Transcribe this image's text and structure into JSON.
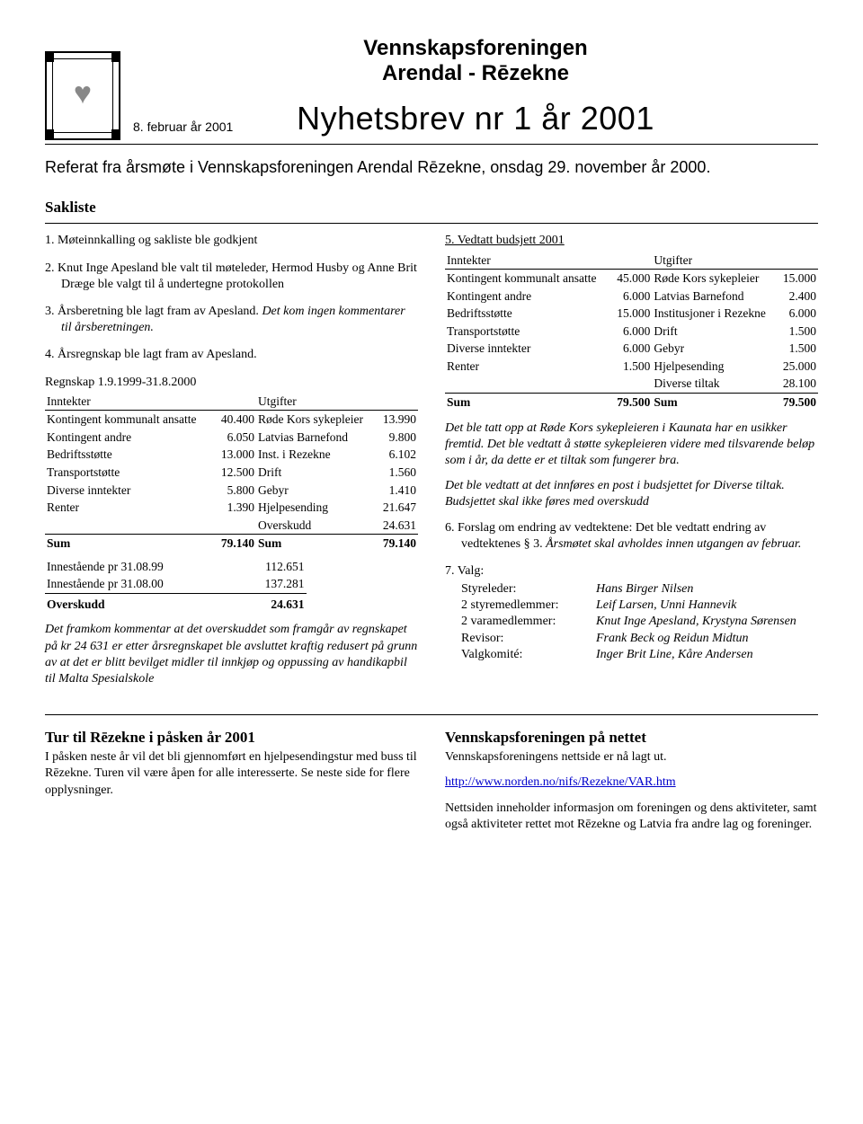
{
  "header": {
    "org_line1": "Vennskapsforeningen",
    "org_line2": "Arendal - Rēzekne",
    "date": "8. februar år 2001",
    "newsletter_title": "Nyhetsbrev nr 1 år 2001",
    "subhead": "Referat fra årsmøte i Vennskapsforeningen Arendal Rēzekne, onsdag 29. november år 2000.",
    "sakliste": "Sakliste"
  },
  "left": {
    "it1": "1.  Møteinnkalling og sakliste ble godkjent",
    "it2": "2.  Knut Inge Apesland ble valt til møteleder, Hermod Husby og Anne Brit Dræge ble valgt til å undertegne protokollen",
    "it3_a": "3.  Årsberetning ble lagt fram av Apesland. ",
    "it3_b": "Det kom ingen kommentarer til årsberetningen.",
    "it4": "4.  Årsregnskap ble lagt fram av Apesland.",
    "regnskap_title": "Regnskap 1.9.1999-31.8.2000",
    "hdr_innt": "Inntekter",
    "hdr_utg": "Utgifter",
    "rows_1999": [
      [
        "Kontingent kommunalt ansatte",
        "40.400",
        "Røde Kors sykepleier",
        "13.990"
      ],
      [
        "Kontingent andre",
        "6.050",
        "Latvias Barnefond",
        "9.800"
      ],
      [
        "Bedriftsstøtte",
        "13.000",
        "Inst. i Rezekne",
        "6.102"
      ],
      [
        "Transportstøtte",
        "12.500",
        "Drift",
        "1.560"
      ],
      [
        "Diverse inntekter",
        "5.800",
        "Gebyr",
        "1.410"
      ],
      [
        "Renter",
        "1.390",
        "Hjelpesending",
        "21.647"
      ],
      [
        "",
        "",
        "Overskudd",
        "24.631"
      ]
    ],
    "sum_l": "Sum",
    "sum_lv": "79.140",
    "sum_r": "Sum",
    "sum_rv": "79.140",
    "bal": [
      [
        "Innestående pr 31.08.99",
        "112.651"
      ],
      [
        "Innestående pr 31.08.00",
        "137.281"
      ]
    ],
    "bal_sum_l": "Overskudd",
    "bal_sum_v": "24.631",
    "comment": "Det framkom kommentar at det overskuddet som framgår av regnskapet på kr 24 631 er etter årsregnskapet ble avsluttet kraftig redusert på grunn av at det er blitt bevilget midler til innkjøp og oppussing av handikapbil til Malta Spesialskole"
  },
  "right": {
    "budget_title": "5.  Vedtatt budsjett 2001",
    "hdr_innt": "Inntekter",
    "hdr_utg": "Utgifter",
    "rows_2001": [
      [
        "Kontingent kommunalt ansatte",
        "45.000",
        "Røde Kors sykepleier",
        "15.000"
      ],
      [
        "Kontingent andre",
        "6.000",
        "Latvias Barnefond",
        "2.400"
      ],
      [
        "Bedriftsstøtte",
        "15.000",
        "Institusjoner i Rezekne",
        "6.000"
      ],
      [
        "Transportstøtte",
        "6.000",
        "Drift",
        "1.500"
      ],
      [
        "Diverse inntekter",
        "6.000",
        "Gebyr",
        "1.500"
      ],
      [
        "Renter",
        "1.500",
        "Hjelpesending",
        "25.000"
      ],
      [
        "",
        "",
        "Diverse tiltak",
        "28.100"
      ]
    ],
    "sum_l": "Sum",
    "sum_lv": "79.500",
    "sum_r": "Sum",
    "sum_rv": "79.500",
    "p1": "Det ble tatt opp at Røde Kors sykepleieren i Kaunata har en usikker fremtid. Det ble vedtatt å støtte sykepleieren videre med tilsvarende beløp som i år, da dette er et tiltak som fungerer bra.",
    "p2": "Det ble vedtatt at det innføres en post i budsjettet for Diverse tiltak. Budsjettet skal ikke føres med overskudd",
    "it6_a": "6.  Forslag om endring av vedtektene: Det ble vedtatt endring av vedtektenes § 3. ",
    "it6_b": "Årsmøtet skal avholdes innen utgangen av februar.",
    "it7": "7.  Valg:",
    "valg": [
      [
        "Styreleder:",
        "Hans Birger Nilsen"
      ],
      [
        "2 styremedlemmer:",
        "Leif Larsen, Unni Hannevik"
      ],
      [
        "2 varamedlemmer:",
        "Knut Inge Apesland, Krystyna Sørensen"
      ],
      [
        "Revisor:",
        "Frank Beck og Reidun Midtun"
      ],
      [
        "Valgkomité:",
        "Inger Brit Line, Kåre Andersen"
      ]
    ]
  },
  "bottom": {
    "left_title": "Tur til Rēzekne i påsken år 2001",
    "left_text": "I påsken neste år vil det bli gjennomført en hjelpesendingstur med buss til Rēzekne. Turen vil være åpen for alle interesserte. Se neste side for flere opplysninger.",
    "right_title": "Vennskapsforeningen på nettet",
    "right_lead": "Vennskapsforeningens nettside er nå lagt ut.",
    "link": "http://www.norden.no/nifs/Rezekne/VAR.htm",
    "right_text": "Nettsiden inneholder informasjon om foreningen og dens aktiviteter, samt også aktiviteter rettet mot Rēzekne og Latvia fra andre lag og foreninger."
  }
}
